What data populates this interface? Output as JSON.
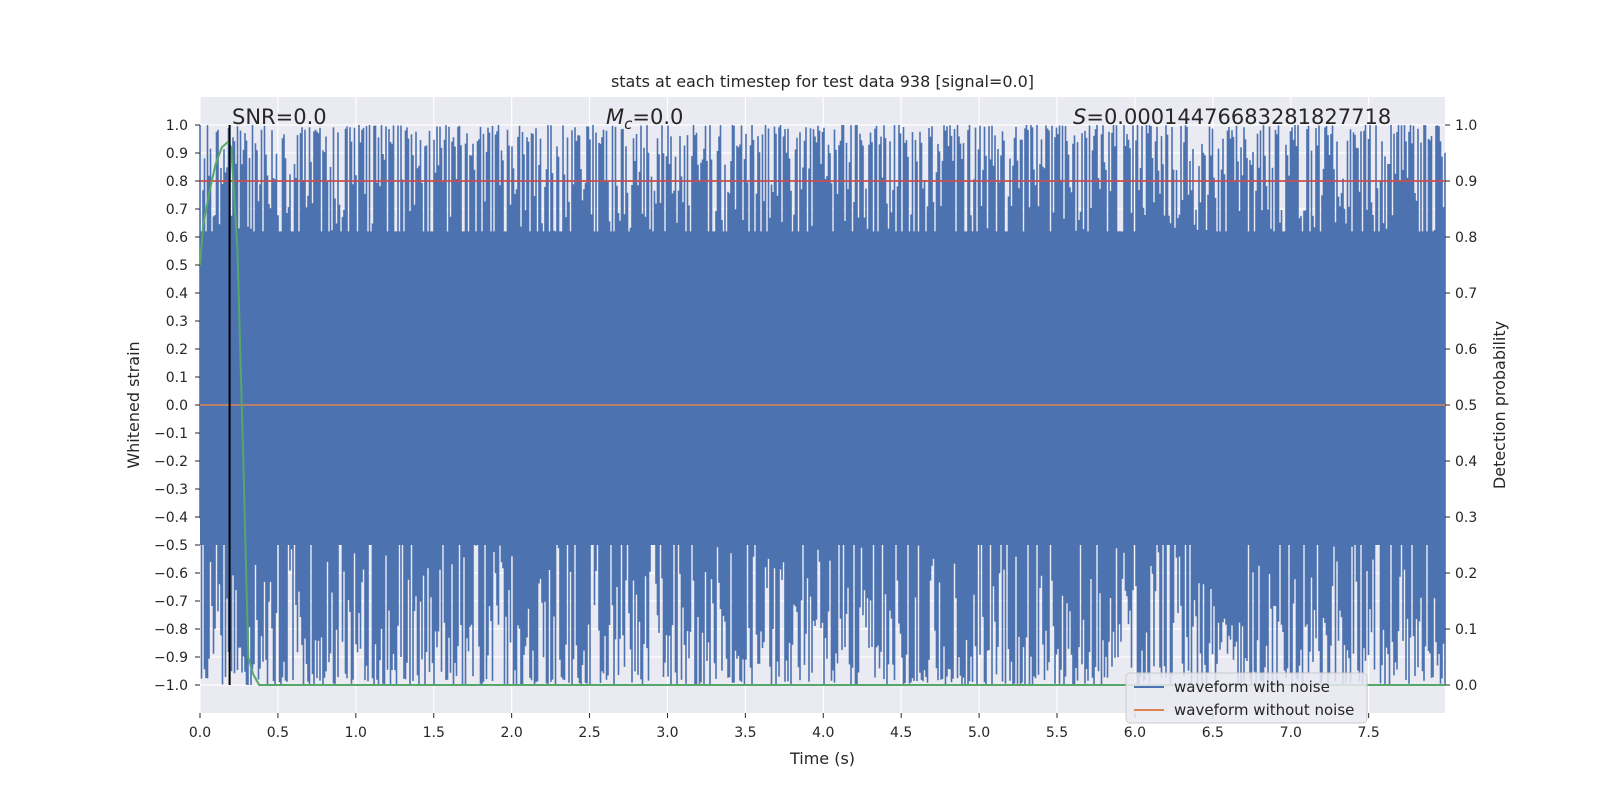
{
  "chart_data": {
    "type": "line",
    "title": "stats at each timestep for test data 938 [signal=0.0]",
    "xlabel": "Time (s)",
    "ylabel": "Whitened strain",
    "y2label": "Detection probability",
    "xlim": [
      0.0,
      7.99
    ],
    "ylim": [
      -1.1,
      1.1
    ],
    "y2lim": [
      -0.05,
      1.05
    ],
    "x_ticks": [
      "0.0",
      "0.5",
      "1.0",
      "1.5",
      "2.0",
      "2.5",
      "3.0",
      "3.5",
      "4.0",
      "4.5",
      "5.0",
      "5.5",
      "6.0",
      "6.5",
      "7.0",
      "7.5"
    ],
    "y_ticks": [
      "1.0",
      "0.9",
      "0.8",
      "0.7",
      "0.6",
      "0.5",
      "0.4",
      "0.3",
      "0.2",
      "0.1",
      "0.0",
      "−0.1",
      "−0.2",
      "−0.3",
      "−0.4",
      "−0.5",
      "−0.6",
      "−0.7",
      "−0.8",
      "−0.9",
      "−1.0"
    ],
    "y2_ticks": [
      "1.0",
      "0.9",
      "0.8",
      "0.7",
      "0.6",
      "0.5",
      "0.4",
      "0.3",
      "0.2",
      "0.1",
      "0.0"
    ],
    "grid": true,
    "legend_position": "lower-right",
    "annotations": {
      "snr": "SNR=0.0",
      "mc_symbol": "M",
      "mc_sub": "c",
      "mc_value": "=0.0",
      "s_symbol": "S",
      "s_value": "=0.00014476683281827718"
    },
    "colors": {
      "background": "#eaeaf2",
      "noise": "#4c72b0",
      "clean": "#dd8452",
      "probability": "#55a868",
      "threshold": "#c44e52",
      "marker": "#000000"
    },
    "series": [
      {
        "name": "waveform with noise",
        "kind": "noise_band",
        "x_range": [
          0.0,
          7.99
        ],
        "y_range": [
          -1.0,
          1.0
        ]
      },
      {
        "name": "waveform without noise",
        "x": [
          0.0,
          7.99
        ],
        "y": [
          0.0,
          0.0
        ]
      },
      {
        "axis": "right",
        "x": [
          0.0,
          0.02,
          0.06,
          0.1,
          0.14,
          0.18,
          0.2,
          0.24,
          0.28,
          0.31,
          0.34,
          0.38,
          1.0,
          2.0,
          4.0,
          6.0,
          7.99
        ],
        "y": [
          0.75,
          0.82,
          0.88,
          0.93,
          0.96,
          0.97,
          0.96,
          0.78,
          0.38,
          0.05,
          0.02,
          0.0,
          0.0,
          0.0,
          0.0,
          0.0,
          0.0
        ]
      },
      {
        "axis": "right",
        "x": [
          0.0,
          7.99
        ],
        "y": [
          0.9,
          0.9
        ]
      },
      {
        "kind": "vline",
        "x": 0.19
      }
    ]
  }
}
